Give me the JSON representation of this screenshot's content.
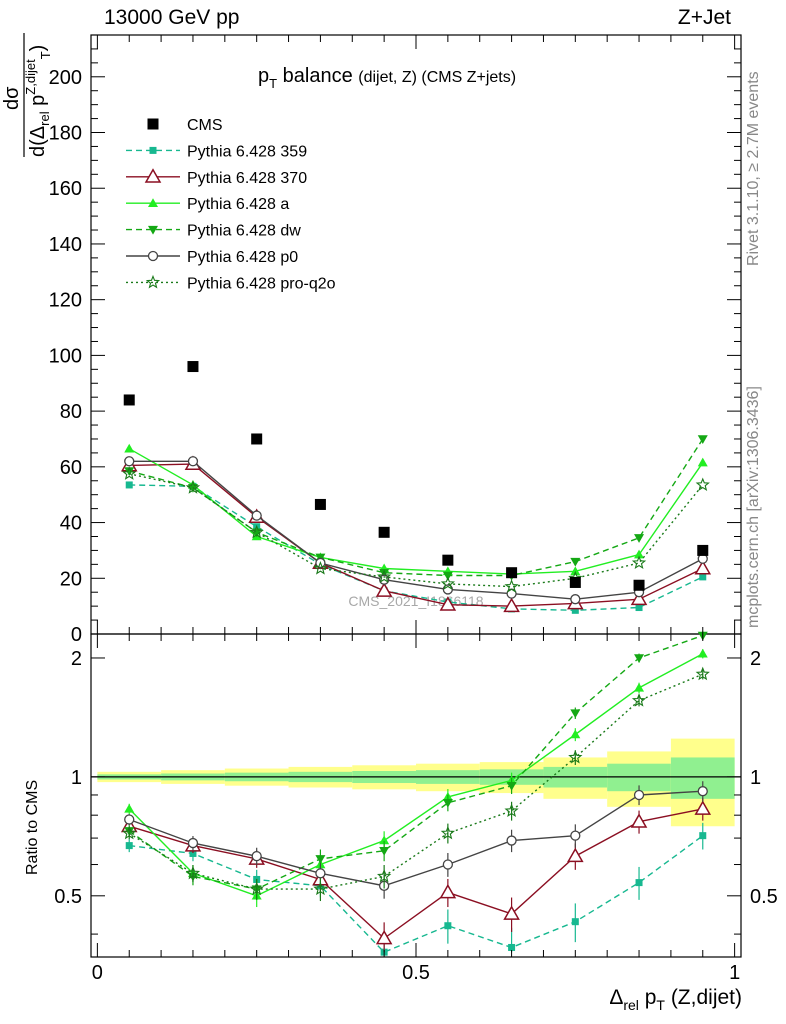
{
  "header": {
    "left": "13000 GeV pp",
    "right": "Z+Jet"
  },
  "side": {
    "rivet": "Rivet 3.1.10, ≥ 2.7M events",
    "mcplots": "mcplots.cern.ch [arXiv:1306.3436]"
  },
  "chart_data": {
    "type": "scatter",
    "title": "p_T balance (dijet, Z) (CMS Z+jets)",
    "watermark": "CMS_2021_I1866118",
    "xlabel": "Δ_rel p_T (Z,dijet)",
    "ylabel": "dσ / d(Δ_rel p_T^{Z,dijet})",
    "ratio_ylabel": "Ratio to CMS",
    "xlim": [
      -0.01,
      1.01
    ],
    "ylim": [
      0,
      215
    ],
    "ratio_ylim": [
      0.35,
      2.3
    ],
    "x": [
      0.05,
      0.15,
      0.25,
      0.35,
      0.45,
      0.55,
      0.65,
      0.75,
      0.85,
      0.95
    ],
    "xticks": [
      "0",
      "0.5",
      "1"
    ],
    "yticks": [
      "0",
      "20",
      "40",
      "60",
      "80",
      "100",
      "120",
      "140",
      "160",
      "180",
      "200"
    ],
    "ratio_yticks": [
      "0.5",
      "1",
      "2"
    ],
    "data": {
      "name": "CMS",
      "color": "#000000",
      "values": [
        84,
        96,
        70,
        46.5,
        36.5,
        26.5,
        22,
        18.5,
        17.5,
        30
      ]
    },
    "band_outer": [
      0.03,
      0.04,
      0.05,
      0.06,
      0.07,
      0.08,
      0.09,
      0.12,
      0.16,
      0.25
    ],
    "band_inner": [
      0.015,
      0.02,
      0.025,
      0.03,
      0.035,
      0.04,
      0.045,
      0.06,
      0.08,
      0.12
    ],
    "series": [
      {
        "name": "Pythia 6.428 359",
        "color": "#17b890",
        "dash": "6,4",
        "marker": "square-small",
        "values": [
          53.5,
          53,
          38.5,
          25,
          15.5,
          11.5,
          9,
          8.5,
          9.5,
          20.5
        ],
        "ratio": [
          0.67,
          0.64,
          0.55,
          0.53,
          0.36,
          0.42,
          0.37,
          0.43,
          0.54,
          0.71
        ]
      },
      {
        "name": "Pythia 6.428 370",
        "color": "#8b0f22",
        "dash": "",
        "marker": "triangle-open",
        "values": [
          60.5,
          61,
          42,
          25.5,
          15.5,
          10.5,
          10,
          11,
          12.5,
          23.5
        ],
        "ratio": [
          0.75,
          0.67,
          0.62,
          0.55,
          0.39,
          0.51,
          0.45,
          0.63,
          0.77,
          0.83
        ]
      },
      {
        "name": "Pythia 6.428 a",
        "color": "#22ee22",
        "dash": "",
        "marker": "triangle-filled",
        "values": [
          66.5,
          53.5,
          35,
          27.5,
          23.5,
          22.5,
          21.5,
          22.5,
          28.5,
          61.5
        ],
        "ratio": [
          0.83,
          0.57,
          0.5,
          0.6,
          0.69,
          0.89,
          0.98,
          1.28,
          1.68,
          2.05
        ]
      },
      {
        "name": "Pythia 6.428 dw",
        "color": "#14a814",
        "dash": "6,4",
        "marker": "triangle-down",
        "values": [
          58.5,
          52.5,
          36.5,
          27.5,
          22,
          21,
          21,
          26,
          34.5,
          70
        ],
        "ratio": [
          0.73,
          0.56,
          0.52,
          0.62,
          0.65,
          0.86,
          0.95,
          1.45,
          2.0,
          2.28
        ]
      },
      {
        "name": "Pythia 6.428 p0",
        "color": "#444444",
        "dash": "",
        "marker": "circle-open",
        "values": [
          62,
          62,
          42.5,
          25.5,
          19.5,
          16,
          14.5,
          12.5,
          15,
          27
        ],
        "ratio": [
          0.78,
          0.68,
          0.63,
          0.57,
          0.53,
          0.6,
          0.69,
          0.71,
          0.9,
          0.92
        ]
      },
      {
        "name": "Pythia 6.428 pro-q2o",
        "color": "#1a7a1a",
        "dash": "2,3",
        "marker": "star",
        "values": [
          57.5,
          52.5,
          36.5,
          23.5,
          20.5,
          18,
          17,
          20,
          25.5,
          53.5
        ],
        "ratio": [
          0.72,
          0.57,
          0.52,
          0.52,
          0.56,
          0.72,
          0.82,
          1.12,
          1.56,
          1.82
        ]
      }
    ]
  }
}
